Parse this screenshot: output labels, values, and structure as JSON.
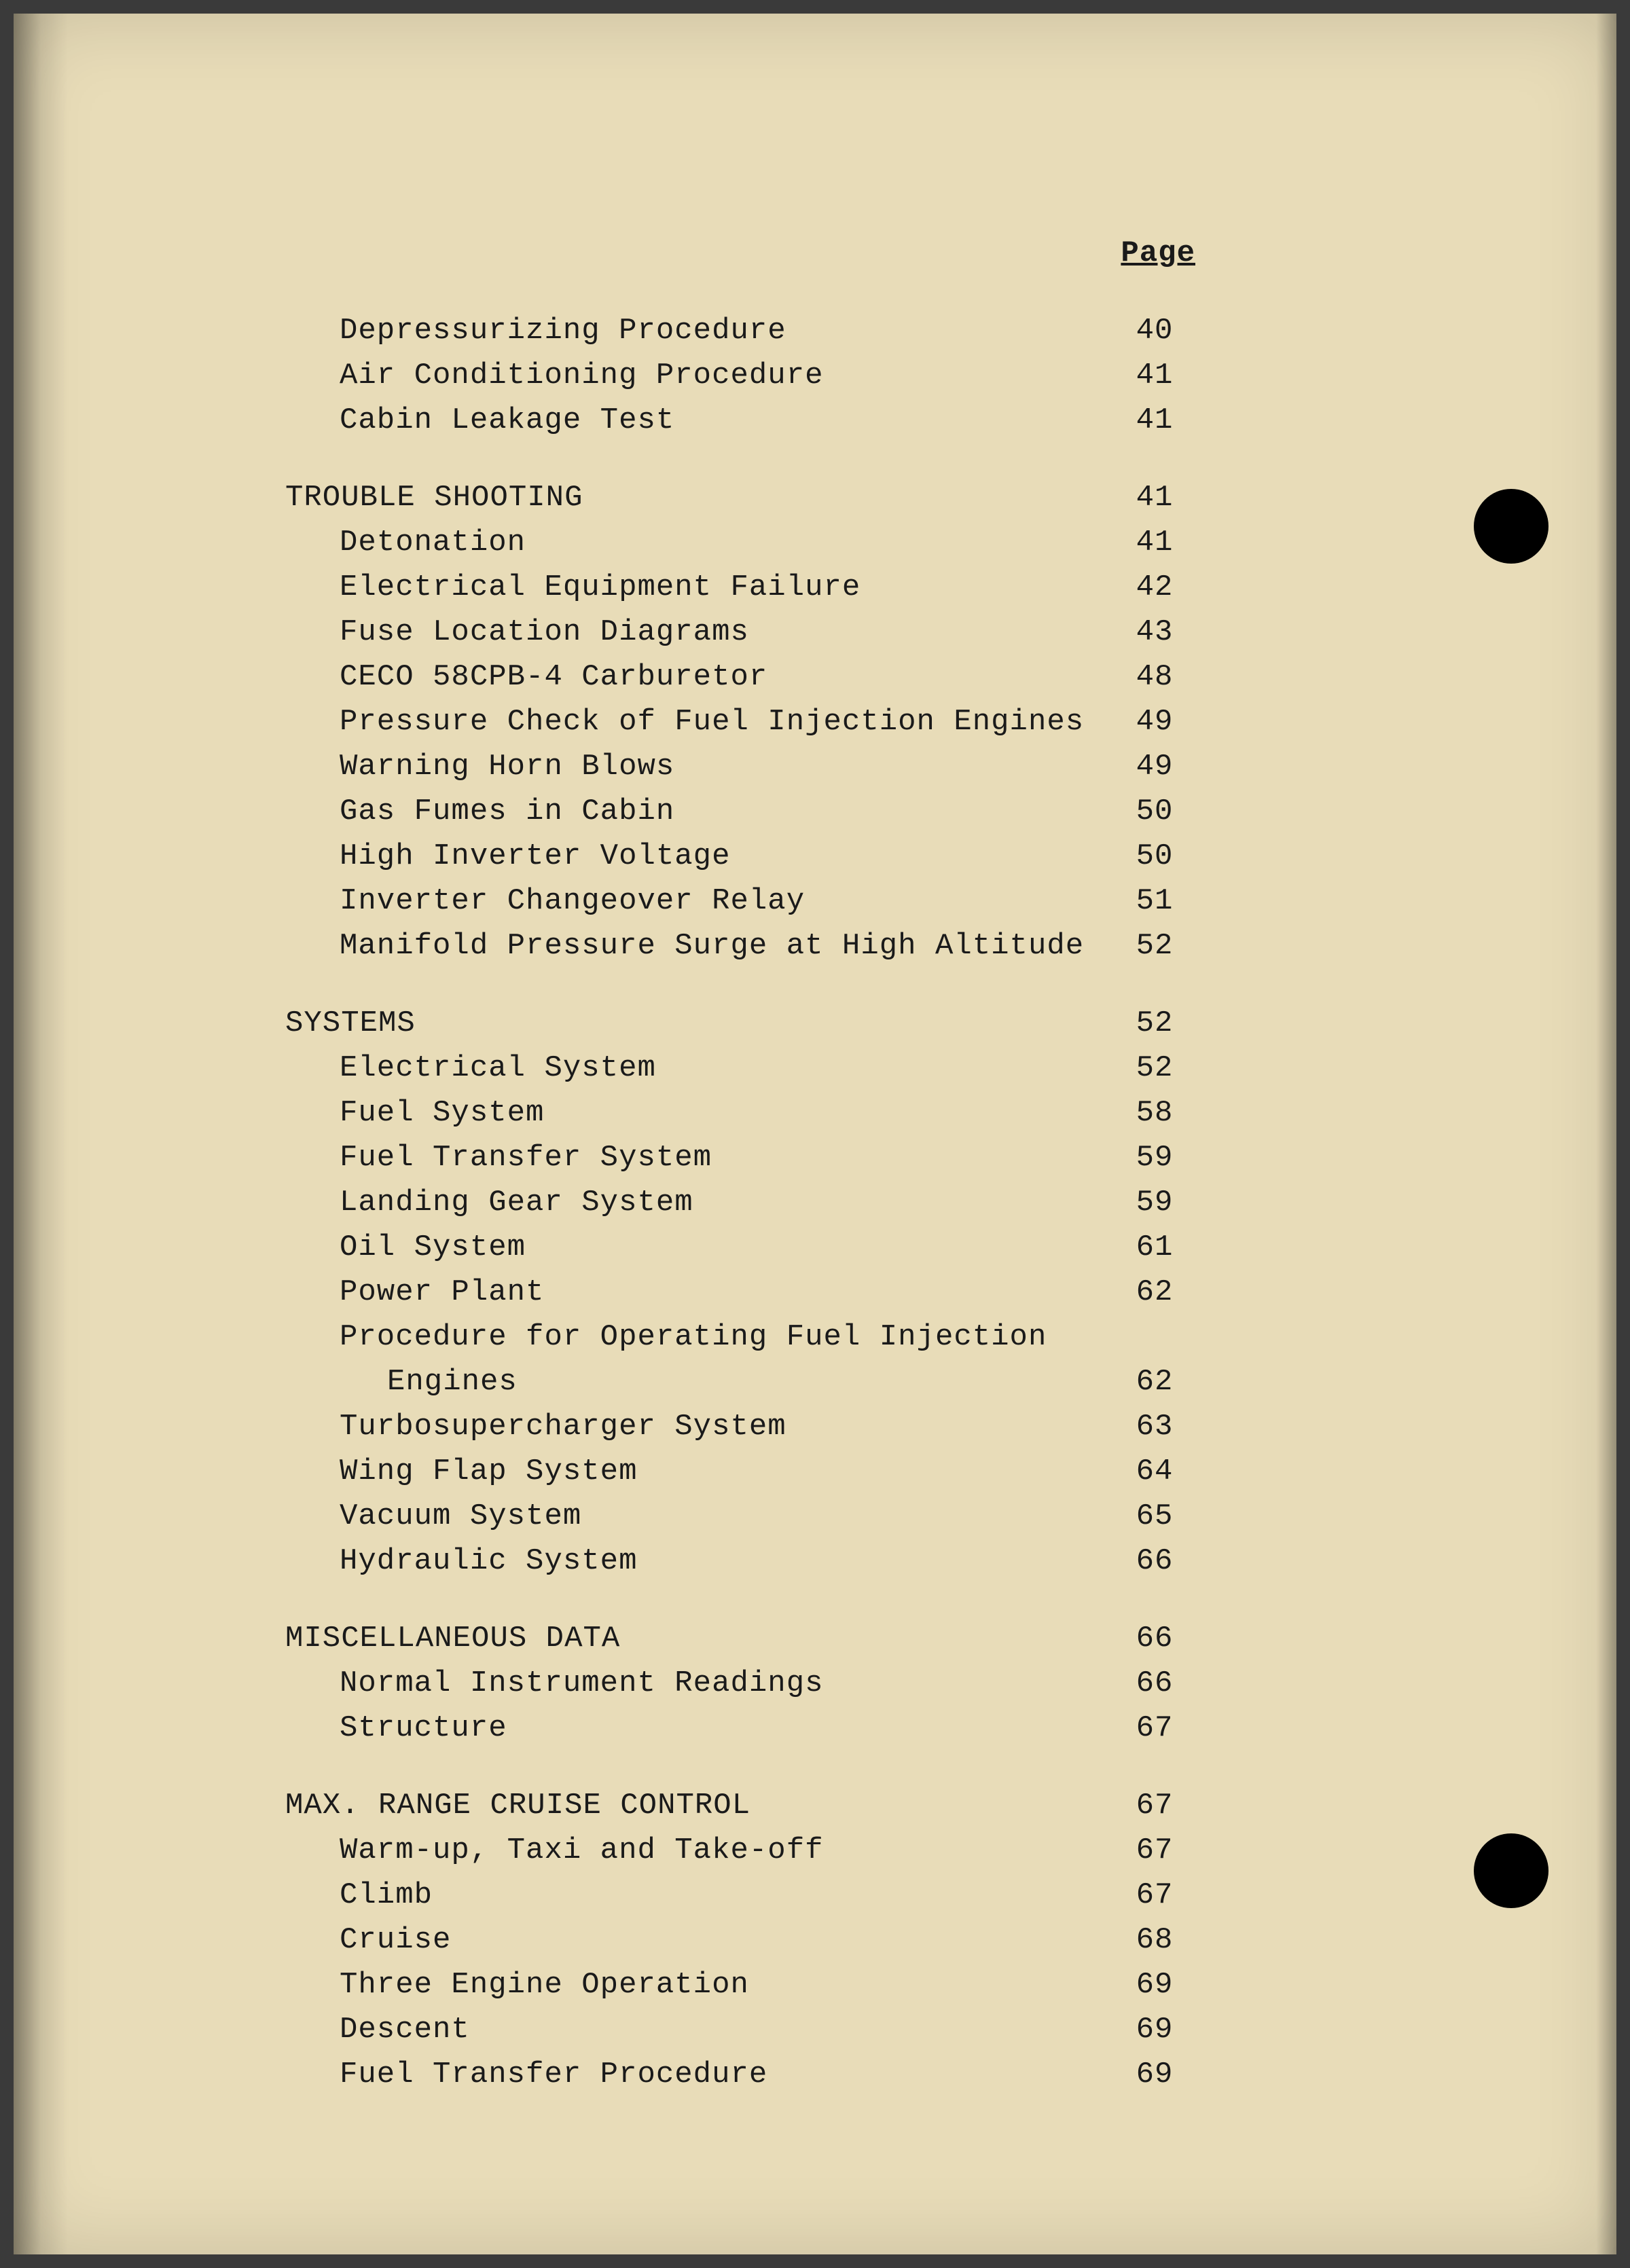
{
  "page_header": "Page",
  "colors": {
    "paper_background": "#e8dcb8",
    "text": "#1a1a1a",
    "outer_background": "#3a3a3a"
  },
  "typography": {
    "font_family": "Courier New",
    "font_size_pt": 12,
    "line_height": 1.5
  },
  "intro_entries": [
    {
      "label": "Depressurizing Procedure",
      "page": "40"
    },
    {
      "label": "Air Conditioning Procedure",
      "page": "41"
    },
    {
      "label": "Cabin Leakage Test",
      "page": "41"
    }
  ],
  "sections": [
    {
      "title": "TROUBLE SHOOTING",
      "title_page": "41",
      "entries": [
        {
          "label": "Detonation",
          "page": "41"
        },
        {
          "label": "Electrical Equipment Failure",
          "page": "42"
        },
        {
          "label": "Fuse Location Diagrams",
          "page": "43"
        },
        {
          "label": "CECO 58CPB-4 Carburetor",
          "page": "48"
        },
        {
          "label": "Pressure Check of Fuel Injection Engines",
          "page": "49"
        },
        {
          "label": "Warning Horn Blows",
          "page": "49"
        },
        {
          "label": "Gas Fumes in Cabin",
          "page": "50"
        },
        {
          "label": "High Inverter Voltage",
          "page": "50"
        },
        {
          "label": "Inverter Changeover Relay",
          "page": "51"
        },
        {
          "label": "Manifold Pressure Surge at High Altitude",
          "page": "52"
        }
      ]
    },
    {
      "title": "SYSTEMS",
      "title_page": "52",
      "entries": [
        {
          "label": "Electrical System",
          "page": "52"
        },
        {
          "label": "Fuel System",
          "page": "58"
        },
        {
          "label": "Fuel Transfer System",
          "page": "59"
        },
        {
          "label": "Landing Gear System",
          "page": "59"
        },
        {
          "label": "Oil System",
          "page": "61"
        },
        {
          "label": "Power Plant",
          "page": "62"
        },
        {
          "label": "Procedure for Operating Fuel Injection",
          "page": ""
        },
        {
          "label": "Engines",
          "page": "62",
          "indent": true
        },
        {
          "label": "Turbosupercharger System",
          "page": "63"
        },
        {
          "label": "Wing Flap System",
          "page": "64"
        },
        {
          "label": "Vacuum System",
          "page": "65"
        },
        {
          "label": "Hydraulic System",
          "page": "66"
        }
      ]
    },
    {
      "title": "MISCELLANEOUS DATA",
      "title_page": "66",
      "entries": [
        {
          "label": "Normal Instrument Readings",
          "page": "66"
        },
        {
          "label": "Structure",
          "page": "67"
        }
      ]
    },
    {
      "title": "MAX. RANGE CRUISE CONTROL",
      "title_page": "67",
      "entries": [
        {
          "label": "Warm-up, Taxi and Take-off",
          "page": "67"
        },
        {
          "label": "Climb",
          "page": "67"
        },
        {
          "label": "Cruise",
          "page": "68"
        },
        {
          "label": "Three Engine Operation",
          "page": "69"
        },
        {
          "label": "Descent",
          "page": "69"
        },
        {
          "label": "Fuel Transfer Procedure",
          "page": "69"
        }
      ]
    }
  ]
}
